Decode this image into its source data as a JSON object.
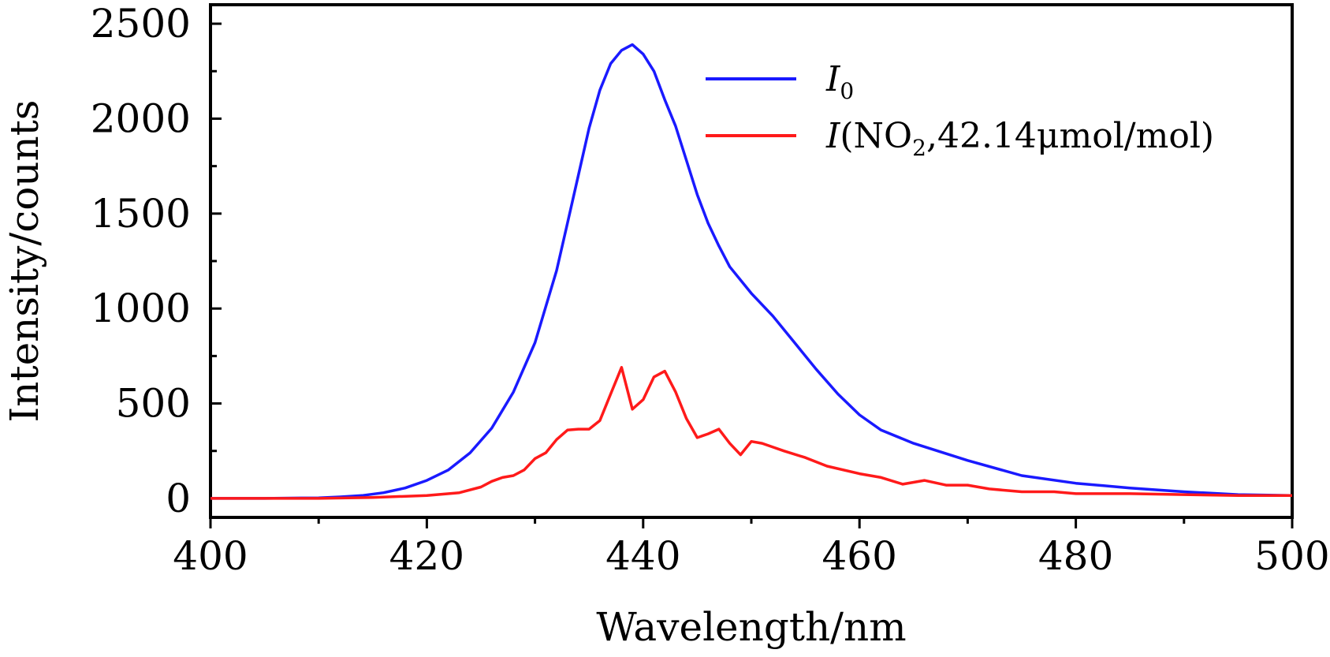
{
  "chart_data": {
    "type": "line",
    "title": "",
    "xlabel": "Wavelength/nm",
    "ylabel": "Intensity/counts",
    "xlim": [
      400,
      500
    ],
    "ylim": [
      -100,
      2600
    ],
    "xticks": [
      400,
      420,
      440,
      460,
      480,
      500
    ],
    "xtick_labels": [
      "400",
      "420",
      "440",
      "460",
      "480",
      "500"
    ],
    "yticks": [
      0,
      500,
      1000,
      1500,
      2000,
      2500
    ],
    "ytick_labels": [
      "0",
      "500",
      "1000",
      "1500",
      "2000",
      "2500"
    ],
    "grid": false,
    "legend_position": "top-right",
    "series": [
      {
        "name": "I0",
        "legend_main": "I",
        "legend_sub": "0",
        "color": "#1a1aff",
        "x": [
          400,
          405,
          410,
          412,
          414,
          416,
          418,
          420,
          422,
          424,
          426,
          428,
          430,
          432,
          433,
          434,
          435,
          436,
          437,
          438,
          439,
          440,
          441,
          442,
          443,
          444,
          445,
          446,
          447,
          448,
          450,
          452,
          454,
          456,
          458,
          460,
          462,
          465,
          470,
          475,
          480,
          485,
          490,
          495,
          500
        ],
        "y": [
          0,
          0,
          3,
          8,
          15,
          30,
          55,
          95,
          150,
          240,
          370,
          560,
          820,
          1200,
          1450,
          1700,
          1950,
          2150,
          2290,
          2360,
          2390,
          2340,
          2250,
          2100,
          1960,
          1780,
          1600,
          1450,
          1330,
          1220,
          1080,
          960,
          820,
          680,
          550,
          440,
          360,
          290,
          200,
          120,
          80,
          55,
          35,
          20,
          15
        ]
      },
      {
        "name": "I(NO2,42.14μmol/mol)",
        "legend_main": "I",
        "legend_rest_a": "(NO",
        "legend_sub": "2",
        "legend_rest_b": ",42.14μmol/mol)",
        "color": "#ff1a1a",
        "x": [
          400,
          410,
          415,
          420,
          423,
          425,
          426,
          427,
          428,
          429,
          430,
          431,
          432,
          433,
          434,
          435,
          436,
          437,
          438,
          439,
          440,
          441,
          442,
          443,
          444,
          445,
          446,
          447,
          448,
          449,
          450,
          451,
          452,
          453,
          455,
          457,
          460,
          462,
          464,
          466,
          468,
          470,
          472,
          475,
          478,
          480,
          485,
          490,
          495,
          500
        ],
        "y": [
          0,
          0,
          5,
          15,
          30,
          60,
          90,
          110,
          120,
          150,
          210,
          240,
          310,
          360,
          365,
          365,
          410,
          550,
          690,
          470,
          520,
          640,
          670,
          560,
          420,
          320,
          340,
          365,
          290,
          230,
          300,
          290,
          270,
          250,
          215,
          170,
          130,
          110,
          75,
          95,
          70,
          70,
          50,
          35,
          35,
          25,
          25,
          20,
          15,
          15
        ]
      }
    ]
  }
}
